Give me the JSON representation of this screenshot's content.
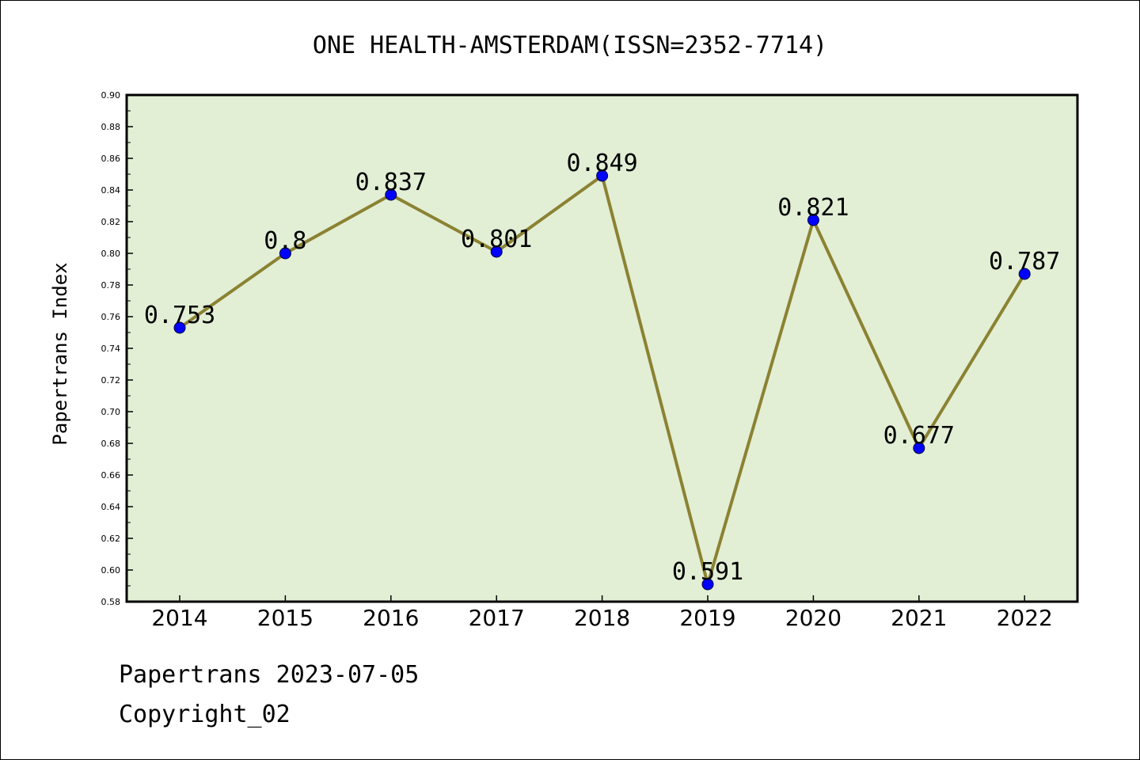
{
  "chart_data": {
    "type": "line",
    "title": "ONE HEALTH-AMSTERDAM(ISSN=2352-7714)",
    "xlabel": "",
    "ylabel": "Papertrans Index",
    "categories": [
      "2014",
      "2015",
      "2016",
      "2017",
      "2018",
      "2019",
      "2020",
      "2021",
      "2022"
    ],
    "series": [
      {
        "values": [
          0.753,
          0.8,
          0.837,
          0.801,
          0.849,
          0.591,
          0.821,
          0.677,
          0.787
        ],
        "labels": [
          "0.753",
          "0.8",
          "0.837",
          "0.801",
          "0.849",
          "0.591",
          "0.821",
          "0.677",
          "0.787"
        ]
      }
    ],
    "ylim": [
      0.58,
      0.9
    ],
    "yticks": [
      "0.58",
      "0.60",
      "0.62",
      "0.64",
      "0.66",
      "0.68",
      "0.70",
      "0.72",
      "0.74",
      "0.76",
      "0.78",
      "0.80",
      "0.82",
      "0.84",
      "0.86",
      "0.88",
      "0.90"
    ],
    "grid": false,
    "legend": "none",
    "colors": {
      "plot_background": "#e2efd5",
      "line": "#8b8232",
      "marker": "#0000ff",
      "axis": "#000000"
    }
  },
  "footer": {
    "date_text": "Papertrans 2023-07-05",
    "copyright_text": "Copyright_02"
  }
}
